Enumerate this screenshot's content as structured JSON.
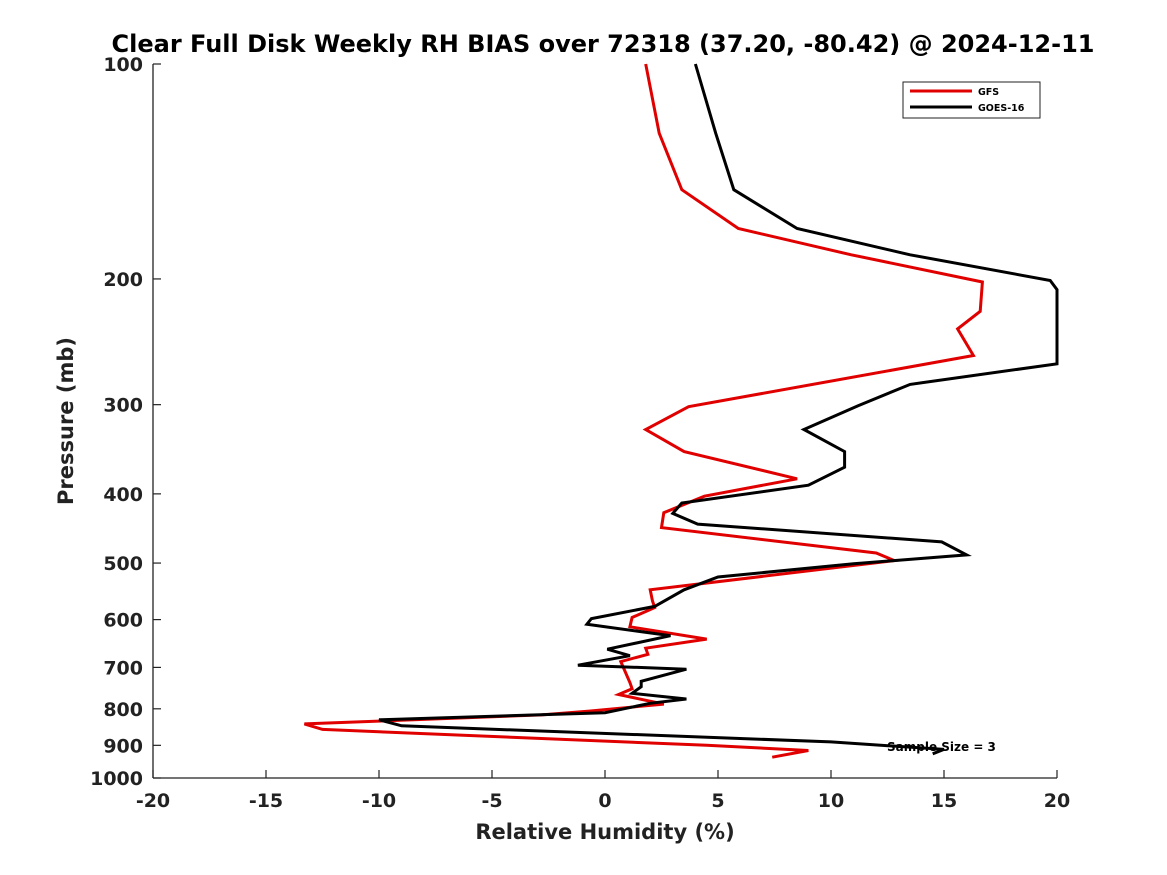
{
  "chart_data": {
    "type": "line",
    "title": "Clear Full Disk Weekly RH BIAS over 72318 (37.20, -80.42) @ 2024-12-11",
    "xlabel": "Relative Humidity (%)",
    "ylabel": "Pressure (mb)",
    "xlim": [
      -20,
      20
    ],
    "ylim": [
      100,
      1000
    ],
    "yscale": "log",
    "y_reversed": true,
    "x_ticks": [
      "-20",
      "-15",
      "-10",
      "-5",
      "0",
      "5",
      "10",
      "15",
      "20"
    ],
    "y_ticks": [
      "100",
      "200",
      "300",
      "400",
      "500",
      "600",
      "700",
      "800",
      "900",
      "1000"
    ],
    "grid": false,
    "legend_position": "top-right",
    "annotation": "Sample Size = 3",
    "series": [
      {
        "name": "GFS",
        "color": "#e00000",
        "points": [
          [
            1.8,
            100
          ],
          [
            2.4,
            125
          ],
          [
            3.4,
            150
          ],
          [
            5.9,
            170
          ],
          [
            10.9,
            185
          ],
          [
            16.7,
            202
          ],
          [
            16.6,
            222
          ],
          [
            15.6,
            235
          ],
          [
            16.3,
            256
          ],
          [
            3.7,
            302
          ],
          [
            1.8,
            325
          ],
          [
            3.5,
            349
          ],
          [
            8.5,
            381
          ],
          [
            4.4,
            403
          ],
          [
            2.6,
            425
          ],
          [
            2.5,
            446
          ],
          [
            12.0,
            484
          ],
          [
            12.8,
            496
          ],
          [
            2.0,
            545
          ],
          [
            2.1,
            565
          ],
          [
            2.2,
            577
          ],
          [
            1.2,
            596
          ],
          [
            1.1,
            614
          ],
          [
            4.5,
            639
          ],
          [
            1.8,
            658
          ],
          [
            1.9,
            671
          ],
          [
            0.7,
            687
          ],
          [
            1.1,
            735
          ],
          [
            1.2,
            750
          ],
          [
            0.6,
            764
          ],
          [
            2.6,
            788
          ],
          [
            -0.7,
            806
          ],
          [
            -2.8,
            816
          ],
          [
            -13.3,
            840
          ],
          [
            -12.5,
            855
          ],
          [
            4.5,
            900
          ],
          [
            9.0,
            915
          ],
          [
            7.4,
            935
          ]
        ]
      },
      {
        "name": "GOES-16",
        "color": "#000000",
        "points": [
          [
            4.0,
            100
          ],
          [
            4.9,
            125
          ],
          [
            5.7,
            150
          ],
          [
            8.5,
            170
          ],
          [
            13.5,
            185
          ],
          [
            19.7,
            201
          ],
          [
            20.0,
            207
          ],
          [
            20.0,
            263
          ],
          [
            13.5,
            281
          ],
          [
            11.2,
            301
          ],
          [
            8.8,
            325
          ],
          [
            10.6,
            349
          ],
          [
            10.6,
            367
          ],
          [
            9.0,
            389
          ],
          [
            3.4,
            412
          ],
          [
            3.0,
            426
          ],
          [
            4.1,
            441
          ],
          [
            14.9,
            467
          ],
          [
            16.0,
            487
          ],
          [
            11.0,
            501
          ],
          [
            5.0,
            523
          ],
          [
            3.5,
            545
          ],
          [
            2.2,
            575
          ],
          [
            -0.6,
            598
          ],
          [
            -0.8,
            609
          ],
          [
            2.9,
            632
          ],
          [
            0.1,
            660
          ],
          [
            1.1,
            674
          ],
          [
            -1.2,
            695
          ],
          [
            3.6,
            704
          ],
          [
            1.6,
            732
          ],
          [
            1.6,
            745
          ],
          [
            1.2,
            761
          ],
          [
            3.6,
            775
          ],
          [
            2.0,
            786
          ],
          [
            0.0,
            810
          ],
          [
            -10.0,
            829
          ],
          [
            -9.0,
            845
          ],
          [
            10.0,
            890
          ],
          [
            15.0,
            912
          ],
          [
            14.5,
            925
          ]
        ]
      }
    ]
  }
}
